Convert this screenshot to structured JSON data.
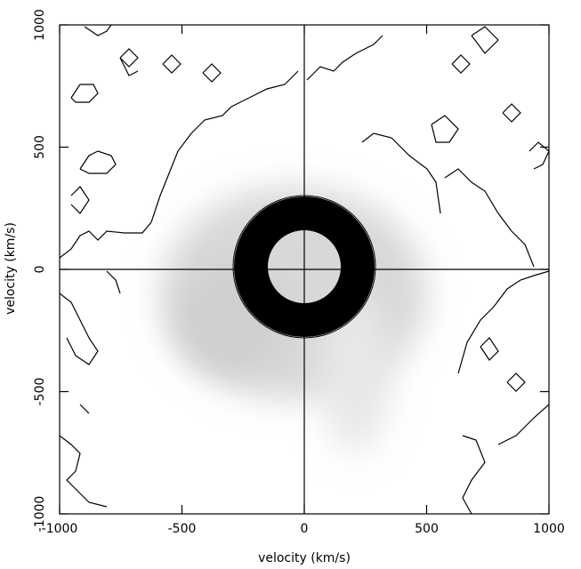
{
  "chart_data": {
    "type": "contour",
    "xlabel": "velocity (km/s)",
    "ylabel": "velocity (km/s)",
    "xlim": [
      -1000,
      1000
    ],
    "ylim": [
      -1000,
      1000
    ],
    "xticks": [
      -1000,
      -500,
      0,
      500,
      1000
    ],
    "yticks": [
      -1000,
      -500,
      0,
      500,
      1000
    ],
    "zero_lines": true,
    "grid": false
  }
}
